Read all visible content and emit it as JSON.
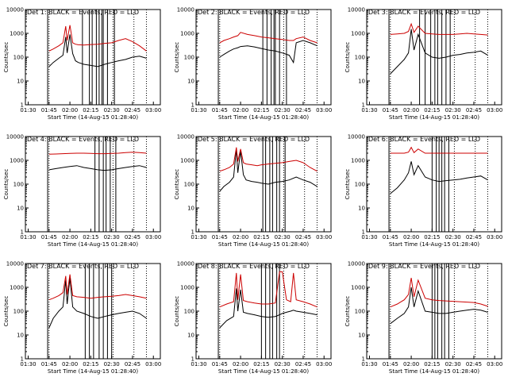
{
  "figure": {
    "xlabel": "Start Time (14-Aug-15 01:28:40)",
    "ylabel": "Counts/sec",
    "x_tick_labels": [
      "01:30",
      "01:45",
      "02:00",
      "02:15",
      "02:30",
      "02:45",
      "03:00"
    ],
    "y_tick_labels": [
      "1",
      "10",
      "100",
      "1000",
      "10000"
    ],
    "colors": {
      "events": "#000000",
      "lld": "#cc0000",
      "axes": "#000000",
      "background": "#ffffff"
    }
  },
  "chart_data": [
    {
      "type": "line",
      "title": "Det 1: BLACK = Events, RED = LLD",
      "xlabel": "Start Time (14-Aug-15 01:28:40)",
      "ylabel": "Counts/sec",
      "x_tick_labels": [
        "01:30",
        "01:45",
        "02:00",
        "02:15",
        "02:30",
        "02:45",
        "03:00"
      ],
      "y_scale": "log",
      "ylim": [
        1,
        10000
      ],
      "x": [
        "01:45",
        "01:48",
        "01:52",
        "01:55",
        "01:57",
        "01:58",
        "02:00",
        "02:02",
        "02:04",
        "02:06",
        "02:10",
        "02:15",
        "02:20",
        "02:25",
        "02:30",
        "02:35",
        "02:40",
        "02:45",
        "02:50",
        "02:55"
      ],
      "series": [
        {
          "name": "BLACK = Events",
          "values": [
            40,
            60,
            90,
            120,
            700,
            150,
            900,
            140,
            70,
            60,
            50,
            45,
            40,
            50,
            60,
            70,
            80,
            100,
            110,
            90
          ]
        },
        {
          "name": "RED = LLD",
          "values": [
            180,
            220,
            300,
            400,
            2000,
            500,
            2200,
            400,
            350,
            330,
            320,
            340,
            350,
            380,
            400,
            500,
            600,
            450,
            300,
            180
          ]
        }
      ]
    },
    {
      "type": "line",
      "title": "Det 2: BLACK = Events, RED = LLD",
      "xlabel": "Start Time (14-Aug-15 01:28:40)",
      "ylabel": "Counts/sec",
      "x_tick_labels": [
        "01:30",
        "01:45",
        "02:00",
        "02:15",
        "02:30",
        "02:45",
        "03:00"
      ],
      "y_scale": "log",
      "ylim": [
        1,
        10000
      ],
      "x": [
        "01:45",
        "01:48",
        "01:52",
        "01:55",
        "01:58",
        "02:00",
        "02:05",
        "02:10",
        "02:15",
        "02:20",
        "02:25",
        "02:30",
        "02:35",
        "02:38",
        "02:40",
        "02:45",
        "02:50",
        "02:55"
      ],
      "series": [
        {
          "name": "BLACK = Events",
          "values": [
            100,
            130,
            180,
            220,
            250,
            280,
            300,
            270,
            230,
            200,
            180,
            150,
            120,
            60,
            400,
            500,
            400,
            300
          ]
        },
        {
          "name": "RED = LLD",
          "values": [
            400,
            500,
            600,
            700,
            800,
            1100,
            900,
            800,
            700,
            650,
            600,
            550,
            500,
            500,
            600,
            700,
            500,
            400
          ]
        }
      ]
    },
    {
      "type": "line",
      "title": "Det 3: BLACK = Events, RED = LLD",
      "xlabel": "Start Time (14-Aug-15 01:28:40)",
      "ylabel": "Counts/sec",
      "x_tick_labels": [
        "01:30",
        "01:45",
        "02:00",
        "02:15",
        "02:30",
        "02:45",
        "03:00"
      ],
      "y_scale": "log",
      "ylim": [
        1,
        10000
      ],
      "x": [
        "01:45",
        "01:50",
        "01:55",
        "01:58",
        "02:00",
        "02:02",
        "02:05",
        "02:10",
        "02:15",
        "02:20",
        "02:25",
        "02:30",
        "02:35",
        "02:40",
        "02:45",
        "02:50",
        "02:55"
      ],
      "series": [
        {
          "name": "BLACK = Events",
          "values": [
            20,
            40,
            80,
            150,
            1500,
            200,
            900,
            150,
            100,
            90,
            100,
            120,
            130,
            150,
            160,
            180,
            120
          ]
        },
        {
          "name": "RED = LLD",
          "values": [
            900,
            950,
            1000,
            1200,
            2500,
            1100,
            2000,
            1000,
            950,
            900,
            900,
            900,
            950,
            1000,
            950,
            900,
            850
          ]
        }
      ]
    },
    {
      "type": "line",
      "title": "Det 4: BLACK = Events, RED = LLD",
      "xlabel": "Start Time (14-Aug-15 01:28:40)",
      "ylabel": "Counts/sec",
      "x_tick_labels": [
        "01:30",
        "01:45",
        "02:00",
        "02:15",
        "02:30",
        "02:45",
        "03:00"
      ],
      "y_scale": "log",
      "ylim": [
        1,
        10000
      ],
      "x": [
        "01:45",
        "01:50",
        "01:55",
        "02:00",
        "02:05",
        "02:10",
        "02:15",
        "02:20",
        "02:25",
        "02:30",
        "02:35",
        "02:40",
        "02:45",
        "02:50",
        "02:55"
      ],
      "series": [
        {
          "name": "BLACK = Events",
          "values": [
            400,
            450,
            500,
            550,
            600,
            500,
            450,
            400,
            380,
            400,
            450,
            500,
            550,
            600,
            500
          ]
        },
        {
          "name": "RED = LLD",
          "values": [
            1800,
            1850,
            1900,
            1950,
            2000,
            2000,
            1950,
            1900,
            1900,
            1950,
            2000,
            2100,
            2200,
            2100,
            2000
          ]
        }
      ]
    },
    {
      "type": "line",
      "title": "Det 5: BLACK = Events, RED = LLD",
      "xlabel": "Start Time (14-Aug-15 01:28:40)",
      "ylabel": "Counts/sec",
      "x_tick_labels": [
        "01:30",
        "01:45",
        "02:00",
        "02:15",
        "02:30",
        "02:45",
        "03:00"
      ],
      "y_scale": "log",
      "ylim": [
        1,
        10000
      ],
      "x": [
        "01:45",
        "01:48",
        "01:52",
        "01:55",
        "01:57",
        "01:58",
        "02:00",
        "02:02",
        "02:04",
        "02:08",
        "02:12",
        "02:15",
        "02:20",
        "02:25",
        "02:30",
        "02:35",
        "02:40",
        "02:45",
        "02:50",
        "02:55"
      ],
      "series": [
        {
          "name": "BLACK = Events",
          "values": [
            50,
            80,
            120,
            200,
            3000,
            300,
            2500,
            250,
            150,
            130,
            120,
            110,
            100,
            120,
            130,
            150,
            200,
            150,
            120,
            80
          ]
        },
        {
          "name": "RED = LLD",
          "values": [
            350,
            400,
            500,
            700,
            3500,
            900,
            3000,
            800,
            700,
            650,
            600,
            650,
            700,
            750,
            800,
            900,
            1000,
            800,
            500,
            350
          ]
        }
      ]
    },
    {
      "type": "line",
      "title": "Det 6: BLACK = Events, RED = LLD",
      "xlabel": "Start Time (14-Aug-15 01:28:40)",
      "ylabel": "Counts/sec",
      "x_tick_labels": [
        "01:30",
        "01:45",
        "02:00",
        "02:15",
        "02:30",
        "02:45",
        "03:00"
      ],
      "y_scale": "log",
      "ylim": [
        1,
        10000
      ],
      "x": [
        "01:45",
        "01:50",
        "01:55",
        "01:58",
        "02:00",
        "02:02",
        "02:05",
        "02:10",
        "02:15",
        "02:20",
        "02:25",
        "02:30",
        "02:35",
        "02:40",
        "02:45",
        "02:50",
        "02:55"
      ],
      "series": [
        {
          "name": "BLACK = Events",
          "values": [
            40,
            70,
            150,
            300,
            900,
            250,
            600,
            200,
            150,
            130,
            140,
            150,
            160,
            180,
            200,
            220,
            150
          ]
        },
        {
          "name": "RED = LLD",
          "values": [
            2000,
            2000,
            2000,
            2200,
            3500,
            2100,
            3000,
            2000,
            2000,
            2000,
            2000,
            2000,
            2000,
            2000,
            2000,
            2000,
            2000
          ]
        }
      ]
    },
    {
      "type": "line",
      "title": "Det 7: BLACK = Events, RED = LLD",
      "xlabel": "Start Time (14-Aug-15 01:28:40)",
      "ylabel": "Counts/sec",
      "x_tick_labels": [
        "01:30",
        "01:45",
        "02:00",
        "02:15",
        "02:30",
        "02:45",
        "03:00"
      ],
      "y_scale": "log",
      "ylim": [
        1,
        10000
      ],
      "x": [
        "01:45",
        "01:48",
        "01:52",
        "01:55",
        "01:57",
        "01:58",
        "02:00",
        "02:02",
        "02:05",
        "02:10",
        "02:15",
        "02:20",
        "02:25",
        "02:30",
        "02:35",
        "02:40",
        "02:45",
        "02:50",
        "02:55"
      ],
      "series": [
        {
          "name": "BLACK = Events",
          "values": [
            20,
            50,
            100,
            150,
            2000,
            200,
            2500,
            150,
            100,
            80,
            60,
            50,
            60,
            70,
            80,
            90,
            100,
            80,
            50
          ]
        },
        {
          "name": "RED = LLD",
          "values": [
            300,
            350,
            450,
            600,
            3000,
            500,
            3500,
            450,
            400,
            380,
            350,
            380,
            400,
            420,
            450,
            500,
            450,
            400,
            350
          ]
        }
      ]
    },
    {
      "type": "line",
      "title": "Det 8: BLACK = Events, RED = LLD",
      "xlabel": "Start Time (14-Aug-15 01:28:40)",
      "ylabel": "Counts/sec",
      "x_tick_labels": [
        "01:30",
        "01:45",
        "02:00",
        "02:15",
        "02:30",
        "02:45",
        "03:00"
      ],
      "y_scale": "log",
      "ylim": [
        1,
        10000
      ],
      "x": [
        "01:45",
        "01:50",
        "01:55",
        "01:57",
        "01:58",
        "02:00",
        "02:02",
        "02:05",
        "02:10",
        "02:15",
        "02:20",
        "02:25",
        "02:28",
        "02:30",
        "02:33",
        "02:36",
        "02:38",
        "02:40",
        "02:45",
        "02:50",
        "02:55"
      ],
      "series": [
        {
          "name": "BLACK = Events",
          "values": [
            20,
            40,
            60,
            900,
            100,
            800,
            90,
            80,
            70,
            60,
            55,
            60,
            70,
            80,
            90,
            100,
            110,
            100,
            90,
            80,
            70
          ]
        },
        {
          "name": "RED = LLD",
          "values": [
            150,
            200,
            250,
            4000,
            300,
            3500,
            280,
            250,
            220,
            200,
            200,
            220,
            4500,
            4500,
            300,
            250,
            4000,
            300,
            250,
            200,
            150
          ]
        }
      ]
    },
    {
      "type": "line",
      "title": "Det 9: BLACK = Events, RED = LLD",
      "xlabel": "Start Time (14-Aug-15 01:28:40)",
      "ylabel": "Counts/sec",
      "x_tick_labels": [
        "01:30",
        "01:45",
        "02:00",
        "02:15",
        "02:30",
        "02:45",
        "03:00"
      ],
      "y_scale": "log",
      "ylim": [
        1,
        10000
      ],
      "x": [
        "01:45",
        "01:50",
        "01:55",
        "01:58",
        "02:00",
        "02:02",
        "02:05",
        "02:10",
        "02:15",
        "02:20",
        "02:25",
        "02:30",
        "02:35",
        "02:40",
        "02:45",
        "02:50",
        "02:55"
      ],
      "series": [
        {
          "name": "BLACK = Events",
          "values": [
            30,
            50,
            80,
            150,
            1000,
            150,
            700,
            100,
            90,
            80,
            80,
            90,
            100,
            110,
            120,
            110,
            90
          ]
        },
        {
          "name": "RED = LLD",
          "values": [
            150,
            200,
            300,
            500,
            2500,
            400,
            2000,
            350,
            300,
            280,
            270,
            260,
            250,
            240,
            230,
            200,
            160
          ]
        }
      ]
    }
  ]
}
